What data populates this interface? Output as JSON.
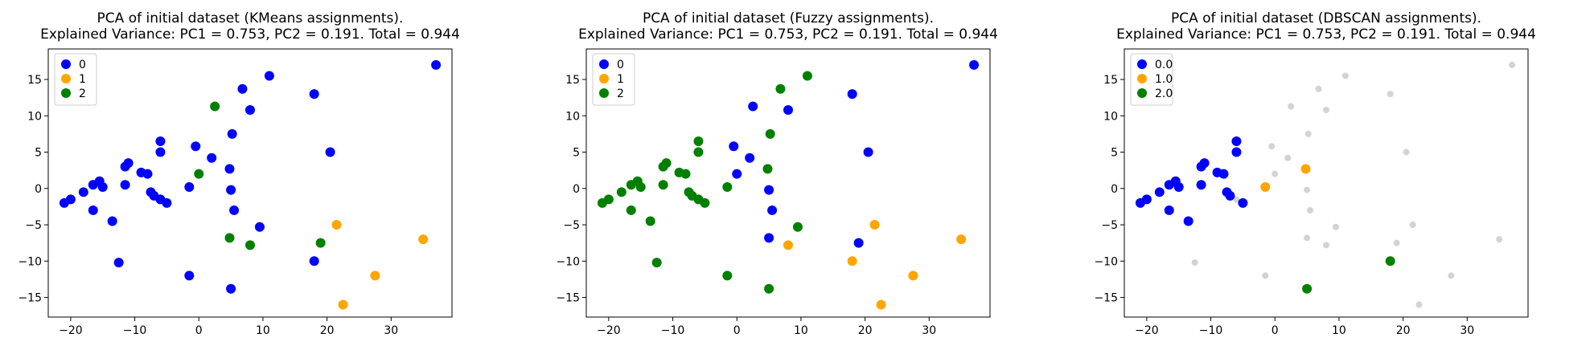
{
  "colors": {
    "blue": "#0000ff",
    "orange": "#ffa500",
    "green": "#008000",
    "grey": "#d3d3d3"
  },
  "chart_data": [
    {
      "type": "scatter",
      "title_line1": "PCA of initial dataset (KMeans assignments).",
      "title_line2": "Explained Variance: PC1 = 0.753, PC2 = 0.191. Total = 0.944",
      "xlabel": "",
      "ylabel": "",
      "xlim": [
        -23.5,
        39.5
      ],
      "ylim": [
        -17.7,
        19.2
      ],
      "xticks": [
        -20,
        -10,
        0,
        10,
        20,
        30
      ],
      "yticks": [
        -15,
        -10,
        -5,
        0,
        5,
        10,
        15
      ],
      "legend_position": "upper-left",
      "grid": false,
      "series": [
        {
          "name": "0",
          "color": "blue",
          "points": [
            [
              -21,
              -2
            ],
            [
              -20,
              -1.5
            ],
            [
              -18,
              -0.5
            ],
            [
              -16.5,
              0.5
            ],
            [
              -15.5,
              1
            ],
            [
              -15,
              0.2
            ],
            [
              -16.5,
              -3
            ],
            [
              -13.5,
              -4.5
            ],
            [
              -12.5,
              -10.2
            ],
            [
              -11.5,
              3
            ],
            [
              -11,
              3.5
            ],
            [
              -11.5,
              0.5
            ],
            [
              -9,
              2.2
            ],
            [
              -8,
              2
            ],
            [
              -7.5,
              -0.5
            ],
            [
              -7,
              -1
            ],
            [
              -6,
              5
            ],
            [
              -6,
              6.5
            ],
            [
              -6,
              -1.5
            ],
            [
              -5,
              -2
            ],
            [
              -1.5,
              0.2
            ],
            [
              -1.5,
              -12
            ],
            [
              -0.5,
              5.8
            ],
            [
              2,
              4.2
            ],
            [
              4.8,
              2.7
            ],
            [
              5,
              -0.2
            ],
            [
              5.2,
              7.5
            ],
            [
              5.5,
              -3
            ],
            [
              5,
              -13.8
            ],
            [
              6.8,
              13.7
            ],
            [
              8,
              10.8
            ],
            [
              9.5,
              -5.3
            ],
            [
              11,
              15.5
            ],
            [
              18,
              13
            ],
            [
              18,
              -10
            ],
            [
              20.5,
              5
            ],
            [
              37,
              17
            ]
          ]
        },
        {
          "name": "1",
          "color": "orange",
          "points": [
            [
              21.5,
              -5
            ],
            [
              22.5,
              -16
            ],
            [
              27.5,
              -12
            ],
            [
              35,
              -7
            ]
          ]
        },
        {
          "name": "2",
          "color": "green",
          "points": [
            [
              2.5,
              11.3
            ],
            [
              0,
              2
            ],
            [
              4.8,
              -6.8
            ],
            [
              8,
              -7.8
            ],
            [
              19,
              -7.5
            ]
          ]
        }
      ]
    },
    {
      "type": "scatter",
      "title_line1": "PCA of initial dataset (Fuzzy assignments).",
      "title_line2": "Explained Variance: PC1 = 0.753, PC2 = 0.191. Total = 0.944",
      "xlabel": "",
      "ylabel": "",
      "xlim": [
        -23.5,
        39.5
      ],
      "ylim": [
        -17.7,
        19.2
      ],
      "xticks": [
        -20,
        -10,
        0,
        10,
        20,
        30
      ],
      "yticks": [
        -15,
        -10,
        -5,
        0,
        5,
        10,
        15
      ],
      "legend_position": "upper-left",
      "grid": false,
      "series": [
        {
          "name": "0",
          "color": "blue",
          "points": [
            [
              2.5,
              11.3
            ],
            [
              8,
              10.8
            ],
            [
              18,
              13
            ],
            [
              20.5,
              5
            ],
            [
              37,
              17
            ],
            [
              -0.5,
              5.8
            ],
            [
              0,
              2
            ],
            [
              2,
              4.2
            ],
            [
              5,
              -0.2
            ],
            [
              5.5,
              -3
            ],
            [
              5,
              -6.8
            ],
            [
              19,
              -7.5
            ]
          ]
        },
        {
          "name": "1",
          "color": "orange",
          "points": [
            [
              8,
              -7.8
            ],
            [
              18,
              -10
            ],
            [
              21.5,
              -5
            ],
            [
              22.5,
              -16
            ],
            [
              27.5,
              -12
            ],
            [
              35,
              -7
            ]
          ]
        },
        {
          "name": "2",
          "color": "green",
          "points": [
            [
              -21,
              -2
            ],
            [
              -20,
              -1.5
            ],
            [
              -18,
              -0.5
            ],
            [
              -16.5,
              0.5
            ],
            [
              -15.5,
              1
            ],
            [
              -15,
              0.2
            ],
            [
              -16.5,
              -3
            ],
            [
              -13.5,
              -4.5
            ],
            [
              -12.5,
              -10.2
            ],
            [
              -11.5,
              3
            ],
            [
              -11,
              3.5
            ],
            [
              -11.5,
              0.5
            ],
            [
              -9,
              2.2
            ],
            [
              -8,
              2
            ],
            [
              -7.5,
              -0.5
            ],
            [
              -7,
              -1
            ],
            [
              -6,
              5
            ],
            [
              -6,
              6.5
            ],
            [
              -6,
              -1.5
            ],
            [
              -5,
              -2
            ],
            [
              -1.5,
              0.2
            ],
            [
              -1.5,
              -12
            ],
            [
              4.8,
              2.7
            ],
            [
              5.2,
              7.5
            ],
            [
              5,
              -13.8
            ],
            [
              6.8,
              13.7
            ],
            [
              9.5,
              -5.3
            ],
            [
              11,
              15.5
            ]
          ]
        }
      ]
    },
    {
      "type": "scatter",
      "title_line1": "PCA of initial dataset (DBSCAN assignments).",
      "title_line2": "Explained Variance: PC1 = 0.753, PC2 = 0.191. Total = 0.944",
      "xlabel": "",
      "ylabel": "",
      "xlim": [
        -23.5,
        39.5
      ],
      "ylim": [
        -17.7,
        19.2
      ],
      "xticks": [
        -20,
        -10,
        0,
        10,
        20,
        30
      ],
      "yticks": [
        -15,
        -10,
        -5,
        0,
        5,
        10,
        15
      ],
      "legend_position": "upper-left",
      "grid": false,
      "series": [
        {
          "name": "0.0",
          "color": "blue",
          "points": [
            [
              -21,
              -2
            ],
            [
              -20,
              -1.5
            ],
            [
              -18,
              -0.5
            ],
            [
              -16.5,
              0.5
            ],
            [
              -15.5,
              1
            ],
            [
              -15,
              0.2
            ],
            [
              -16.5,
              -3
            ],
            [
              -13.5,
              -4.5
            ],
            [
              -11.5,
              3
            ],
            [
              -11,
              3.5
            ],
            [
              -11.5,
              0.5
            ],
            [
              -9,
              2.2
            ],
            [
              -8,
              2
            ],
            [
              -7.5,
              -0.5
            ],
            [
              -7,
              -1
            ],
            [
              -6,
              5
            ],
            [
              -6,
              6.5
            ],
            [
              -5,
              -2
            ]
          ]
        },
        {
          "name": "1.0",
          "color": "orange",
          "points": [
            [
              -1.5,
              0.2
            ],
            [
              4.8,
              2.7
            ]
          ]
        },
        {
          "name": "2.0",
          "color": "green",
          "points": [
            [
              18,
              -10
            ],
            [
              5,
              -13.8
            ]
          ]
        },
        {
          "name": "",
          "color": "grey",
          "small": true,
          "points": [
            [
              -12.5,
              -10.2
            ],
            [
              -6,
              -1.5
            ],
            [
              -1.5,
              -12
            ],
            [
              -0.5,
              5.8
            ],
            [
              0,
              2
            ],
            [
              2,
              4.2
            ],
            [
              2.5,
              11.3
            ],
            [
              5,
              -0.2
            ],
            [
              5.2,
              7.5
            ],
            [
              5.5,
              -3
            ],
            [
              5,
              -6.8
            ],
            [
              6.8,
              13.7
            ],
            [
              8,
              10.8
            ],
            [
              8,
              -7.8
            ],
            [
              9.5,
              -5.3
            ],
            [
              11,
              15.5
            ],
            [
              18,
              13
            ],
            [
              19,
              -7.5
            ],
            [
              20.5,
              5
            ],
            [
              21.5,
              -5
            ],
            [
              22.5,
              -16
            ],
            [
              27.5,
              -12
            ],
            [
              35,
              -7
            ],
            [
              37,
              17
            ]
          ]
        }
      ]
    }
  ]
}
